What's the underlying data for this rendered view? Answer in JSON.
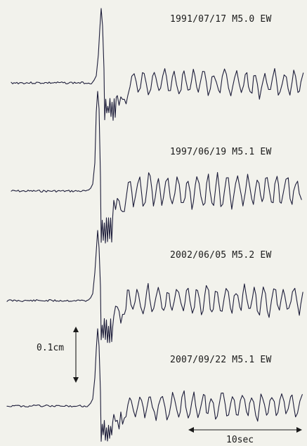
{
  "chart_data": {
    "type": "line",
    "traces": [
      {
        "label": "1991/07/17 M5.0 EW"
      },
      {
        "label": "1997/06/19 M5.1 EW"
      },
      {
        "label": "2002/06/05 M5.2 EW"
      },
      {
        "label": "2007/09/22 M5.1 EW"
      }
    ],
    "amplitude_scale": {
      "label": "0.1cm",
      "value_cm": 0.1
    },
    "time_scale": {
      "label": "10sec",
      "value_sec": 10
    }
  }
}
